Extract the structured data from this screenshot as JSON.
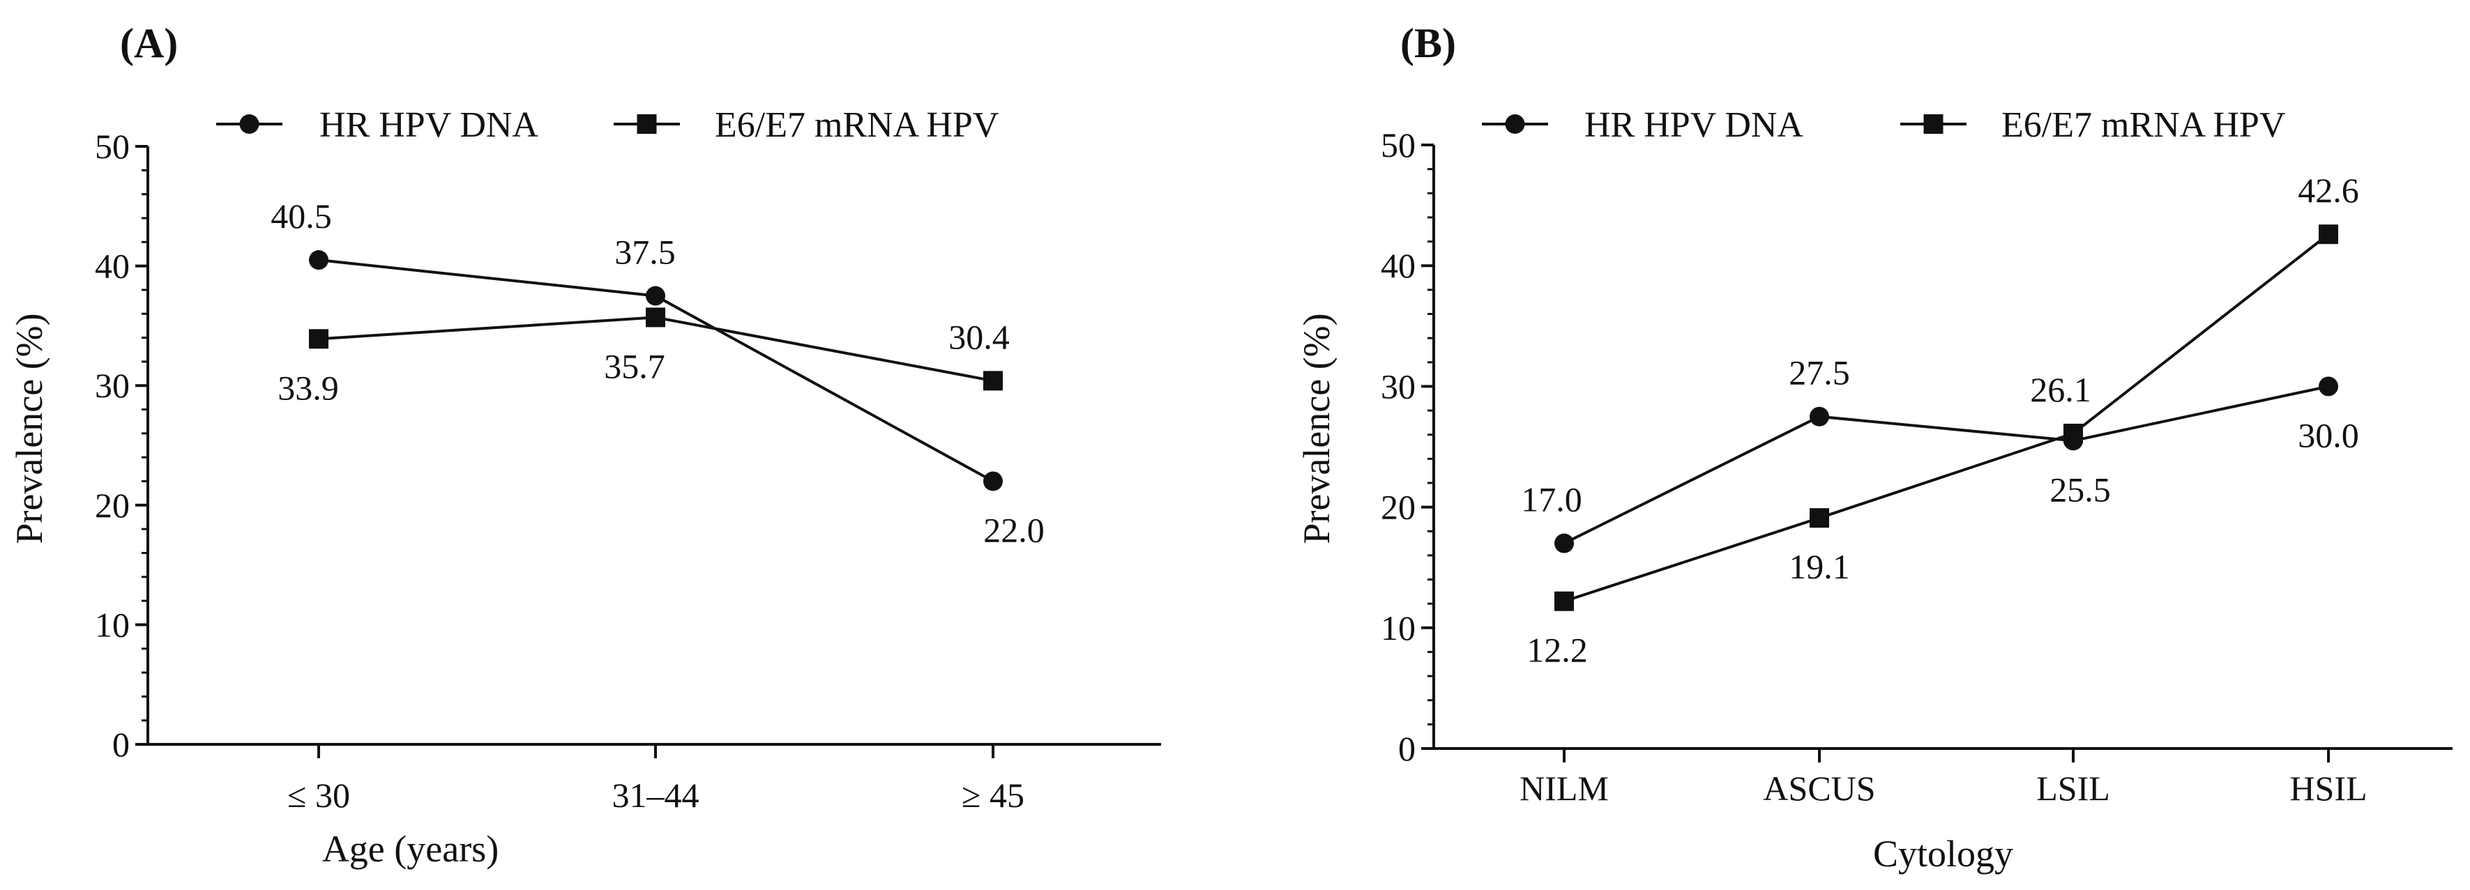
{
  "chart_data": [
    {
      "type": "line",
      "panel_label": "(A)",
      "xlabel": "Age (years)",
      "ylabel": "Prevalence (%)",
      "ylim": [
        0,
        50
      ],
      "yticks": [
        "0",
        "10",
        "20",
        "30",
        "40",
        "50"
      ],
      "categories": [
        "≤ 30",
        "31–44",
        "≥ 45"
      ],
      "legend_position": "top",
      "series": [
        {
          "name": "HR HPV DNA",
          "marker": "circle",
          "values": [
            40.5,
            37.5,
            22.0
          ],
          "labels": [
            "40.5",
            "37.5",
            "22.0"
          ]
        },
        {
          "name": "E6/E7 mRNA HPV",
          "marker": "square",
          "values": [
            33.9,
            35.7,
            30.4
          ],
          "labels": [
            "33.9",
            "35.7",
            "30.4"
          ]
        }
      ]
    },
    {
      "type": "line",
      "panel_label": "(B)",
      "xlabel": "Cytology",
      "ylabel": "Prevalence (%)",
      "ylim": [
        0,
        50
      ],
      "yticks": [
        "0",
        "10",
        "20",
        "30",
        "40",
        "50"
      ],
      "categories": [
        "NILM",
        "ASCUS",
        "LSIL",
        "HSIL"
      ],
      "legend_position": "top",
      "series": [
        {
          "name": "HR HPV DNA",
          "marker": "circle",
          "values": [
            17.0,
            27.5,
            25.5,
            30.0
          ],
          "labels": [
            "17.0",
            "27.5",
            "25.5",
            "30.0"
          ]
        },
        {
          "name": "E6/E7 mRNA HPV",
          "marker": "square",
          "values": [
            12.2,
            19.1,
            26.1,
            42.6
          ],
          "labels": [
            "12.2",
            "19.1",
            "26.1",
            "42.6"
          ]
        }
      ]
    }
  ]
}
